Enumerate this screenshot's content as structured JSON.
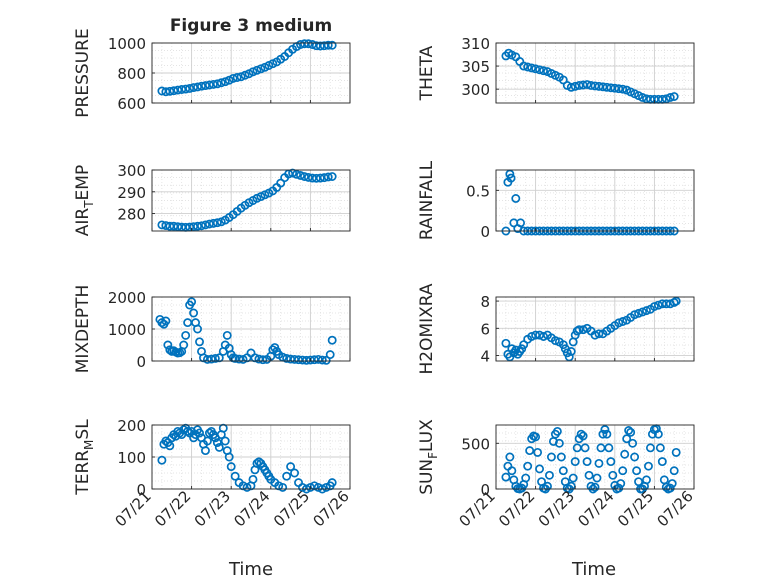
{
  "title": "Figure 3 medium",
  "xlabel": "Time",
  "x_range": [
    "07/21",
    "07/26"
  ],
  "x_ticks": [
    "07/21",
    "07/22",
    "07/23",
    "07/24",
    "07/25",
    "07/26"
  ],
  "colors": {
    "marker": "#0072BD",
    "grid": "#dcdcdc",
    "axis": "#262626"
  },
  "chart_data": [
    {
      "type": "scatter",
      "name": "pressure",
      "ylabel": "PRESSURE",
      "ylim": [
        600,
        1000
      ],
      "yticks": [
        600,
        800,
        1000
      ],
      "show_xticks": false,
      "x": [
        0.25,
        0.35,
        0.45,
        0.55,
        0.65,
        0.75,
        0.85,
        0.95,
        1.05,
        1.15,
        1.25,
        1.35,
        1.45,
        1.55,
        1.65,
        1.75,
        1.85,
        1.95,
        2.05,
        2.15,
        2.25,
        2.35,
        2.45,
        2.55,
        2.65,
        2.75,
        2.85,
        2.95,
        3.05,
        3.15,
        3.25,
        3.35,
        3.45,
        3.55,
        3.65,
        3.75,
        3.85,
        3.95,
        4.05,
        4.15,
        4.25,
        4.35,
        4.45,
        4.55
      ],
      "y": [
        680,
        675,
        678,
        682,
        686,
        690,
        693,
        697,
        703,
        707,
        712,
        716,
        720,
        724,
        728,
        735,
        742,
        752,
        764,
        770,
        775,
        785,
        795,
        808,
        818,
        828,
        838,
        850,
        862,
        874,
        892,
        910,
        935,
        958,
        976,
        990,
        995,
        995,
        990,
        982,
        980,
        982,
        985,
        985
      ]
    },
    {
      "type": "scatter",
      "name": "theta",
      "ylabel": "THETA",
      "ylim": [
        297,
        310
      ],
      "yticks": [
        300,
        305,
        310
      ],
      "show_xticks": false,
      "x": [
        0.25,
        0.32,
        0.4,
        0.5,
        0.6,
        0.7,
        0.8,
        0.9,
        1.0,
        1.1,
        1.2,
        1.3,
        1.4,
        1.5,
        1.6,
        1.7,
        1.8,
        1.9,
        2.0,
        2.1,
        2.2,
        2.3,
        2.4,
        2.5,
        2.6,
        2.7,
        2.8,
        2.9,
        3.0,
        3.1,
        3.2,
        3.3,
        3.4,
        3.5,
        3.6,
        3.7,
        3.8,
        3.9,
        4.0,
        4.1,
        4.2,
        4.3,
        4.4,
        4.5
      ],
      "y": [
        307.2,
        307.8,
        307.4,
        307,
        306,
        305,
        304.8,
        304.6,
        304.4,
        304.2,
        304,
        303.8,
        303.4,
        303,
        302.6,
        302,
        300.8,
        300.4,
        300.6,
        300.8,
        300.9,
        301,
        300.8,
        300.7,
        300.6,
        300.5,
        300.4,
        300.3,
        300.2,
        300.1,
        300,
        299.8,
        299.4,
        299,
        298.6,
        298.2,
        297.9,
        297.8,
        297.8,
        297.8,
        297.8,
        297.9,
        298.2,
        298.4
      ]
    },
    {
      "type": "scatter",
      "name": "air_temp",
      "ylabel": "AIR_TEMP",
      "ylim": [
        272,
        300
      ],
      "yticks": [
        280,
        290,
        300
      ],
      "show_xticks": false,
      "x": [
        0.25,
        0.35,
        0.45,
        0.55,
        0.65,
        0.75,
        0.85,
        0.95,
        1.05,
        1.15,
        1.25,
        1.35,
        1.45,
        1.55,
        1.65,
        1.75,
        1.85,
        1.95,
        2.05,
        2.15,
        2.25,
        2.35,
        2.45,
        2.55,
        2.65,
        2.75,
        2.85,
        2.95,
        3.05,
        3.15,
        3.25,
        3.35,
        3.45,
        3.55,
        3.65,
        3.75,
        3.85,
        3.95,
        4.05,
        4.15,
        4.25,
        4.35,
        4.45,
        4.55
      ],
      "y": [
        274.8,
        274.5,
        274.2,
        274.2,
        274,
        273.8,
        273.7,
        273.8,
        274,
        274.2,
        274.4,
        274.8,
        275.2,
        275.5,
        275.8,
        276.2,
        277,
        278.2,
        279.5,
        281,
        282.5,
        283.8,
        285,
        286,
        287,
        287.8,
        288.6,
        289.4,
        290.4,
        292,
        294,
        296.5,
        298.2,
        298.6,
        298,
        297.5,
        297,
        296.6,
        296.3,
        296.2,
        296.3,
        296.5,
        296.8,
        297
      ]
    },
    {
      "type": "scatter",
      "name": "rainfall",
      "ylabel": "RAINFALL",
      "ylim": [
        0,
        0.75
      ],
      "yticks": [
        0,
        0.5
      ],
      "show_xticks": false,
      "x": [
        0.25,
        0.3,
        0.35,
        0.38,
        0.45,
        0.5,
        0.55,
        0.62,
        0.7,
        0.8,
        0.9,
        1.0,
        1.1,
        1.2,
        1.3,
        1.4,
        1.5,
        1.6,
        1.7,
        1.8,
        1.9,
        2.0,
        2.1,
        2.2,
        2.3,
        2.4,
        2.5,
        2.6,
        2.7,
        2.8,
        2.9,
        3.0,
        3.1,
        3.2,
        3.3,
        3.4,
        3.5,
        3.6,
        3.7,
        3.8,
        3.9,
        4.0,
        4.1,
        4.2,
        4.3,
        4.4,
        4.5
      ],
      "y": [
        0,
        0.6,
        0.7,
        0.65,
        0.1,
        0.4,
        0.03,
        0.1,
        0,
        0,
        0,
        0,
        0,
        0,
        0,
        0,
        0,
        0,
        0,
        0,
        0,
        0,
        0,
        0,
        0,
        0,
        0,
        0,
        0,
        0,
        0,
        0,
        0,
        0,
        0,
        0,
        0,
        0,
        0,
        0,
        0,
        0,
        0,
        0,
        0,
        0,
        0
      ]
    },
    {
      "type": "scatter",
      "name": "mixdepth",
      "ylabel": "MIXDEPTH",
      "ylim": [
        0,
        2000
      ],
      "yticks": [
        0,
        1000,
        2000
      ],
      "show_xticks": false,
      "x": [
        0.2,
        0.25,
        0.3,
        0.35,
        0.4,
        0.45,
        0.5,
        0.55,
        0.6,
        0.65,
        0.7,
        0.75,
        0.8,
        0.85,
        0.9,
        0.95,
        1.0,
        1.05,
        1.1,
        1.15,
        1.2,
        1.25,
        1.3,
        1.4,
        1.5,
        1.6,
        1.7,
        1.8,
        1.85,
        1.9,
        1.95,
        2.0,
        2.05,
        2.1,
        2.2,
        2.3,
        2.4,
        2.5,
        2.6,
        2.7,
        2.8,
        2.9,
        3.0,
        3.05,
        3.1,
        3.15,
        3.2,
        3.3,
        3.4,
        3.5,
        3.6,
        3.7,
        3.8,
        3.9,
        4.0,
        4.1,
        4.2,
        4.3,
        4.4,
        4.5,
        4.55
      ],
      "y": [
        1300,
        1200,
        1150,
        1250,
        500,
        350,
        300,
        320,
        280,
        250,
        260,
        300,
        500,
        800,
        1200,
        1750,
        1850,
        1500,
        1200,
        1000,
        600,
        300,
        100,
        50,
        60,
        80,
        100,
        300,
        500,
        800,
        400,
        200,
        100,
        80,
        60,
        50,
        100,
        250,
        100,
        60,
        40,
        50,
        150,
        350,
        420,
        300,
        200,
        120,
        80,
        60,
        50,
        40,
        30,
        20,
        30,
        40,
        50,
        30,
        20,
        200,
        650
      ]
    },
    {
      "type": "scatter",
      "name": "h2omixra",
      "ylabel": "H2OMIXRA",
      "ylim": [
        3.6,
        8.3
      ],
      "yticks": [
        4,
        6,
        8
      ],
      "show_xticks": false,
      "x": [
        0.25,
        0.3,
        0.35,
        0.4,
        0.45,
        0.5,
        0.55,
        0.6,
        0.65,
        0.7,
        0.8,
        0.9,
        1.0,
        1.1,
        1.2,
        1.3,
        1.4,
        1.5,
        1.6,
        1.7,
        1.75,
        1.8,
        1.85,
        1.9,
        1.95,
        2.0,
        2.05,
        2.1,
        2.2,
        2.3,
        2.4,
        2.5,
        2.6,
        2.7,
        2.8,
        2.9,
        3.0,
        3.1,
        3.2,
        3.3,
        3.4,
        3.5,
        3.6,
        3.7,
        3.8,
        3.9,
        4.0,
        4.1,
        4.2,
        4.3,
        4.4,
        4.5,
        4.55
      ],
      "y": [
        4.9,
        4.1,
        3.9,
        4.5,
        4.2,
        4.4,
        4.1,
        4.3,
        4.5,
        4.8,
        5.2,
        5.4,
        5.5,
        5.5,
        5.4,
        5.5,
        5.3,
        5.1,
        5.0,
        4.8,
        4.5,
        4.2,
        3.9,
        4.3,
        5.0,
        5.5,
        5.8,
        5.9,
        5.9,
        6.0,
        5.8,
        5.5,
        5.6,
        5.6,
        5.8,
        6.0,
        6.2,
        6.4,
        6.5,
        6.6,
        6.8,
        7.0,
        7.1,
        7.2,
        7.3,
        7.4,
        7.6,
        7.7,
        7.8,
        7.8,
        7.8,
        7.9,
        8.0
      ]
    },
    {
      "type": "scatter",
      "name": "terr_msl",
      "ylabel": "TERR_MSL",
      "ylim": [
        0,
        200
      ],
      "yticks": [
        0,
        100,
        200
      ],
      "show_xticks": true,
      "x": [
        0.25,
        0.3,
        0.35,
        0.4,
        0.45,
        0.5,
        0.55,
        0.6,
        0.65,
        0.7,
        0.75,
        0.8,
        0.85,
        0.9,
        0.95,
        1.0,
        1.05,
        1.1,
        1.15,
        1.2,
        1.25,
        1.3,
        1.35,
        1.4,
        1.45,
        1.5,
        1.55,
        1.6,
        1.65,
        1.7,
        1.75,
        1.8,
        1.85,
        1.9,
        1.95,
        2.0,
        2.1,
        2.2,
        2.3,
        2.4,
        2.5,
        2.55,
        2.6,
        2.65,
        2.7,
        2.75,
        2.8,
        2.85,
        2.9,
        2.95,
        3.0,
        3.1,
        3.2,
        3.3,
        3.4,
        3.5,
        3.6,
        3.7,
        3.8,
        3.9,
        4.0,
        4.1,
        4.2,
        4.3,
        4.4,
        4.5,
        4.55
      ],
      "y": [
        90,
        140,
        150,
        145,
        135,
        160,
        170,
        165,
        180,
        175,
        170,
        185,
        190,
        180,
        175,
        180,
        160,
        170,
        185,
        175,
        160,
        140,
        120,
        150,
        175,
        180,
        170,
        160,
        145,
        130,
        170,
        190,
        150,
        120,
        100,
        70,
        40,
        20,
        10,
        5,
        10,
        30,
        60,
        80,
        85,
        80,
        70,
        60,
        50,
        40,
        30,
        20,
        10,
        5,
        40,
        70,
        50,
        20,
        5,
        0,
        5,
        10,
        5,
        0,
        5,
        10,
        20
      ]
    },
    {
      "type": "scatter",
      "name": "sun_flux",
      "ylabel": "SUN_FLUX",
      "ylim": [
        0,
        700
      ],
      "yticks": [
        0,
        500
      ],
      "show_xticks": true,
      "x": [
        0.25,
        0.3,
        0.35,
        0.4,
        0.45,
        0.5,
        0.55,
        0.6,
        0.65,
        0.7,
        0.75,
        0.8,
        0.85,
        0.9,
        0.95,
        1.0,
        1.05,
        1.1,
        1.15,
        1.2,
        1.25,
        1.3,
        1.35,
        1.4,
        1.45,
        1.5,
        1.55,
        1.6,
        1.65,
        1.7,
        1.75,
        1.8,
        1.85,
        1.9,
        1.95,
        2.0,
        2.05,
        2.1,
        2.15,
        2.2,
        2.25,
        2.3,
        2.35,
        2.4,
        2.45,
        2.5,
        2.55,
        2.6,
        2.65,
        2.7,
        2.75,
        2.8,
        2.85,
        2.9,
        2.95,
        3.0,
        3.05,
        3.1,
        3.15,
        3.2,
        3.25,
        3.3,
        3.35,
        3.4,
        3.45,
        3.5,
        3.55,
        3.6,
        3.65,
        3.7,
        3.75,
        3.8,
        3.85,
        3.9,
        3.95,
        4.0,
        4.05,
        4.1,
        4.15,
        4.2,
        4.25,
        4.3,
        4.35,
        4.4,
        4.45,
        4.5,
        4.55
      ],
      "y": [
        130,
        250,
        350,
        200,
        100,
        30,
        5,
        0,
        10,
        50,
        120,
        250,
        420,
        550,
        580,
        570,
        400,
        220,
        80,
        10,
        0,
        30,
        150,
        350,
        520,
        600,
        630,
        500,
        350,
        200,
        80,
        10,
        0,
        30,
        120,
        300,
        450,
        550,
        600,
        580,
        450,
        300,
        150,
        30,
        0,
        20,
        120,
        280,
        450,
        600,
        650,
        600,
        450,
        300,
        150,
        40,
        0,
        10,
        60,
        200,
        380,
        550,
        640,
        620,
        500,
        350,
        200,
        80,
        0,
        0,
        30,
        100,
        250,
        450,
        600,
        650,
        660,
        600,
        450,
        300,
        100,
        20,
        0,
        10,
        60,
        200,
        400
      ]
    }
  ]
}
